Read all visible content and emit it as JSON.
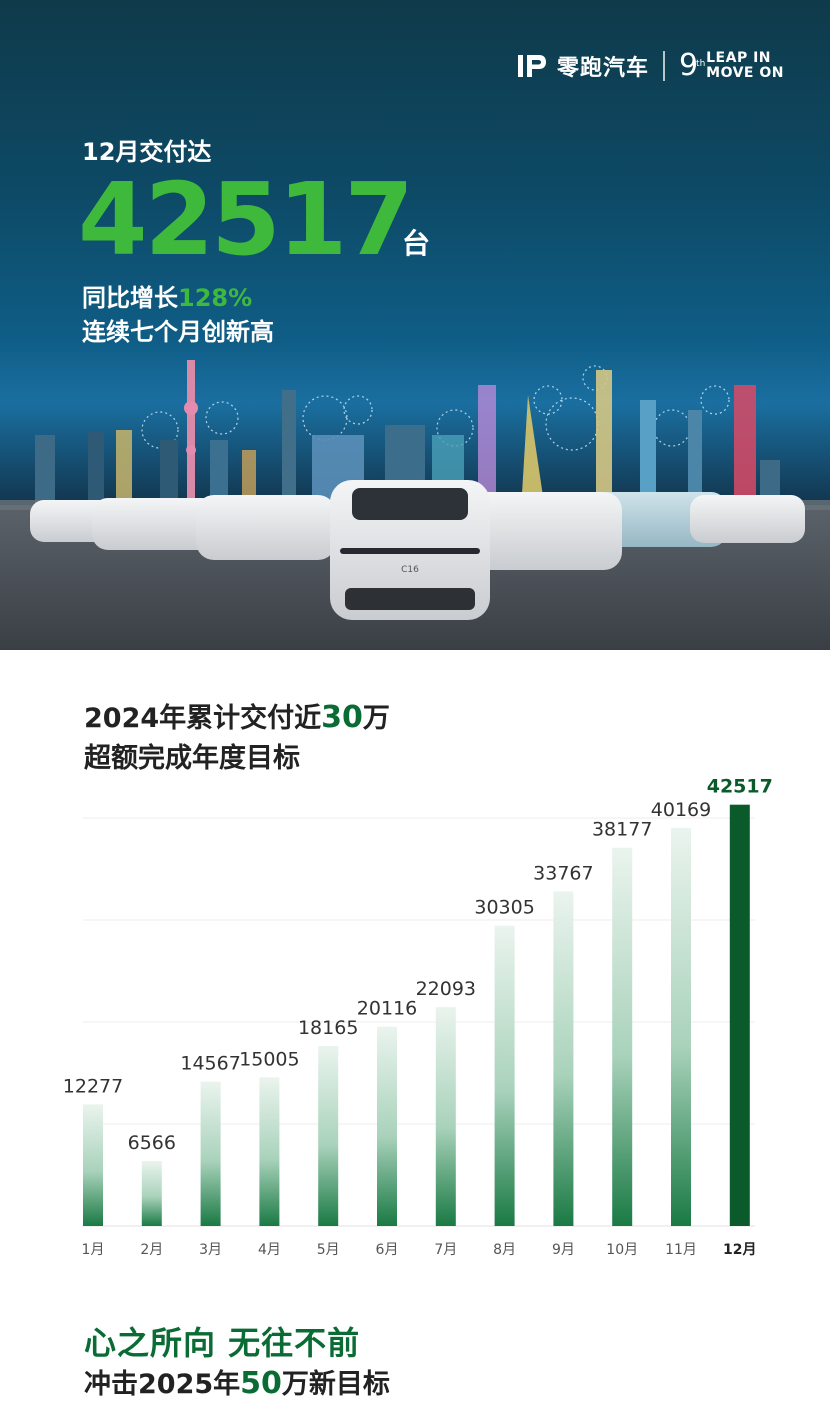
{
  "brand": {
    "name": "零跑汽车",
    "nine": "9",
    "th": "th",
    "slogan_line1": "LEAP IN",
    "slogan_line2": "MOVE ON"
  },
  "hero": {
    "pre": "12月交付达",
    "number": "42517",
    "unit": "台",
    "growth_label": "同比增长",
    "growth_value": "128%",
    "line2": "连续七个月创新高",
    "car_badge": "C16"
  },
  "chart_heading": {
    "line1_pre": "2024年累计交付近",
    "line1_num": "30",
    "line1_post": "万",
    "line2": "超额完成年度目标"
  },
  "chart_data": {
    "type": "bar",
    "categories": [
      "1月",
      "2月",
      "3月",
      "4月",
      "5月",
      "6月",
      "7月",
      "8月",
      "9月",
      "10月",
      "11月",
      "12月"
    ],
    "values": [
      12277,
      6566,
      14567,
      15005,
      18165,
      20116,
      22093,
      30305,
      33767,
      38177,
      40169,
      42517
    ],
    "ylim": [
      0,
      44000
    ],
    "grid": true,
    "highlight_index": 11,
    "colors": {
      "bar_light": "#e6f2ec",
      "bar_dark": "#1a7a44",
      "highlight": "#0a5a2c",
      "label": "#333333"
    }
  },
  "footer": {
    "line1": "心之所向 无往不前",
    "line2_pre": "冲击2025年",
    "line2_num": "50",
    "line2_post": "万新目标"
  }
}
